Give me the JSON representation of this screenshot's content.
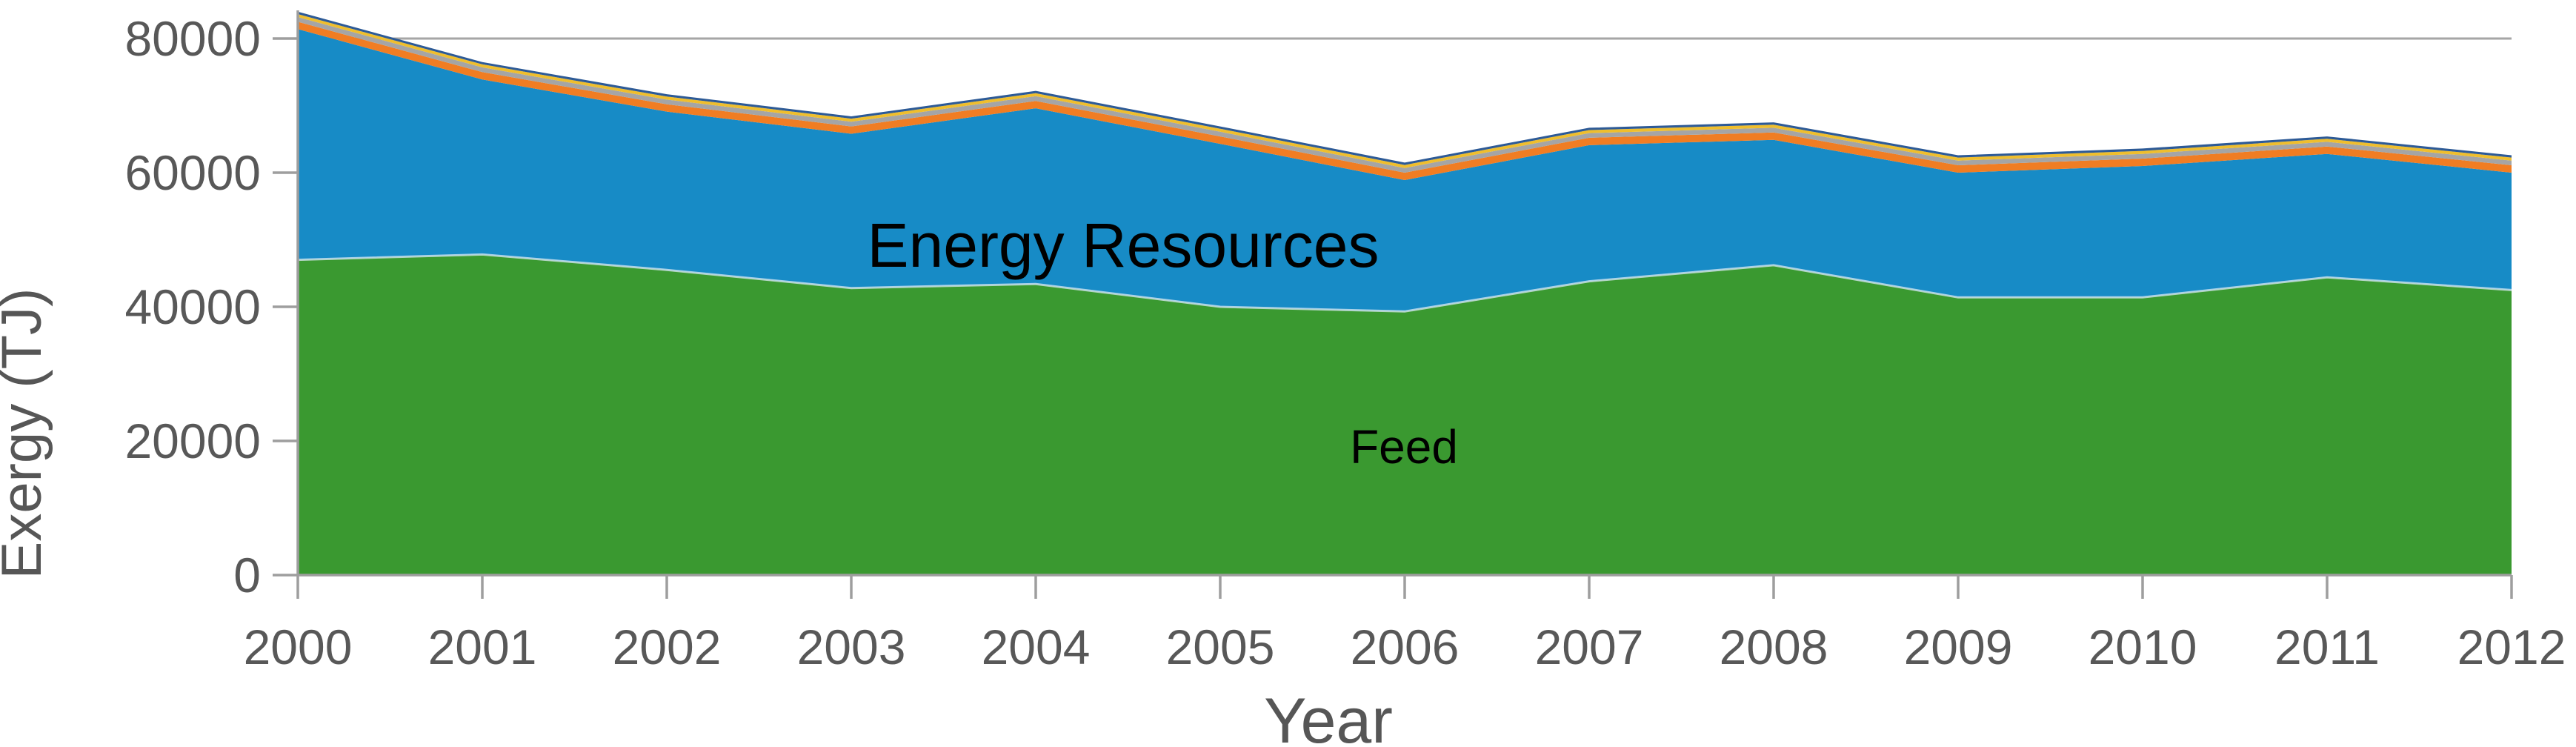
{
  "chart_data": {
    "type": "area",
    "stacked": true,
    "title": "",
    "xlabel": "Year",
    "ylabel": "Exergy (TJ)",
    "x": [
      2000,
      2001,
      2002,
      2003,
      2004,
      2005,
      2006,
      2007,
      2008,
      2009,
      2010,
      2011,
      2012
    ],
    "x_tick_labels": [
      "2000",
      "2001",
      "2002",
      "2003",
      "2004",
      "2005",
      "2006",
      "2007",
      "2008",
      "2009",
      "2010",
      "2011",
      "2012"
    ],
    "xlim": [
      2000,
      2012
    ],
    "ylim": [
      0,
      80000
    ],
    "y_ticks": [
      0,
      20000,
      40000,
      60000,
      80000
    ],
    "y_tick_labels": [
      "0",
      "20000",
      "40000",
      "60000",
      "80000"
    ],
    "gridlines_at": [
      80000
    ],
    "legend": "none",
    "series": [
      {
        "name": "Feed",
        "color": "#3A9930",
        "values": [
          47000,
          47800,
          45500,
          42800,
          43400,
          40000,
          39300,
          43800,
          46200,
          41400,
          41400,
          44400,
          42500
        ]
      },
      {
        "name": "Energy Resources",
        "color": "#178BC6",
        "values": [
          34400,
          26100,
          23600,
          23000,
          26200,
          24300,
          19600,
          20300,
          18700,
          18600,
          19600,
          18400,
          17500
        ]
      },
      {
        "name": "unlabeled-band-orange",
        "color": "#F07D23",
        "values": [
          1100,
          1100,
          1100,
          1100,
          1100,
          1100,
          1100,
          1100,
          1100,
          1100,
          1100,
          1100,
          1100
        ]
      },
      {
        "name": "unlabeled-band-gray",
        "color": "#A5A5A5",
        "values": [
          700,
          700,
          700,
          700,
          700,
          700,
          700,
          700,
          700,
          700,
          700,
          700,
          700
        ]
      },
      {
        "name": "unlabeled-band-yellow",
        "color": "#EFBE2D",
        "values": [
          450,
          450,
          450,
          450,
          450,
          450,
          450,
          450,
          450,
          450,
          450,
          450,
          450
        ]
      },
      {
        "name": "unlabeled-band-navy",
        "color": "#2D5A96",
        "values": [
          350,
          350,
          350,
          350,
          350,
          350,
          350,
          350,
          350,
          350,
          350,
          350,
          350
        ]
      }
    ],
    "inline_labels": [
      {
        "text": "Energy Resources",
        "series": "Energy Resources"
      },
      {
        "text": "Feed",
        "series": "Feed"
      }
    ]
  },
  "colors": {
    "background": "#FFFFFF",
    "axis": "#9E9E9E",
    "gridline": "#A6A6A6",
    "tick_text": "#585858",
    "axis_title_text": "#565656",
    "inline_label_text": "#000000",
    "feed_top_edge_highlight": "#DCEAF5"
  }
}
